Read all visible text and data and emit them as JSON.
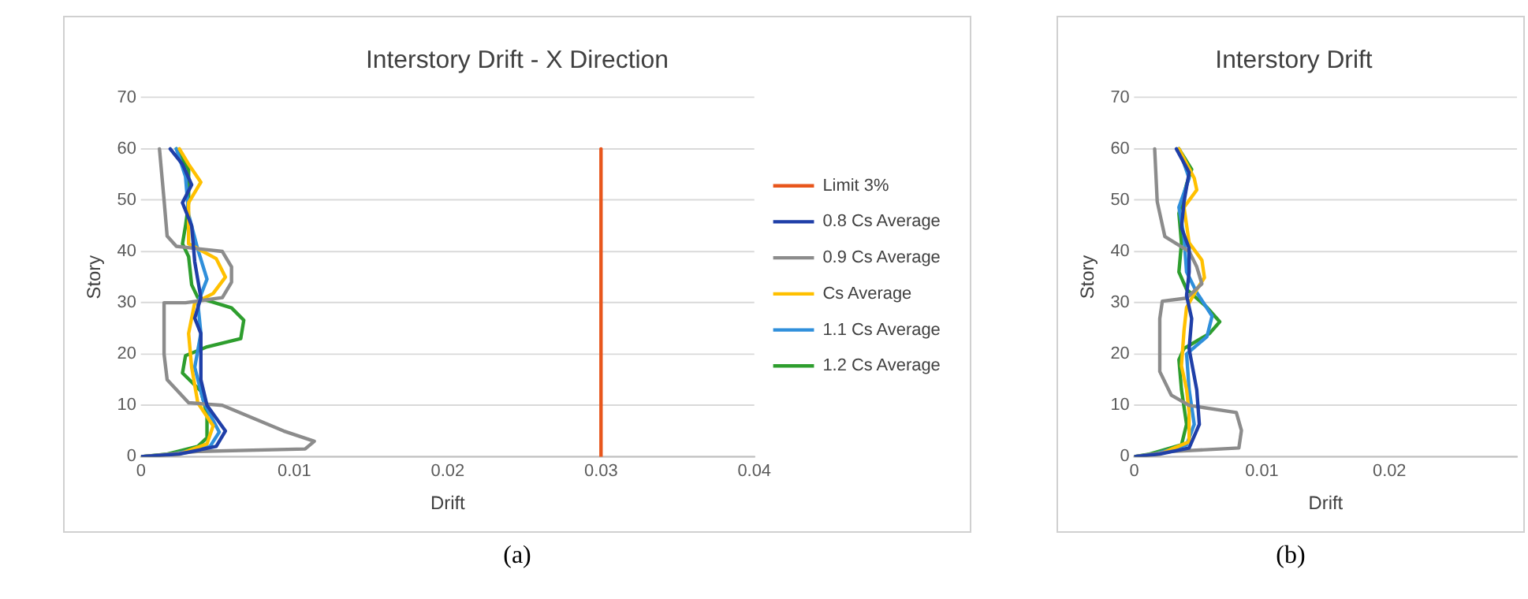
{
  "chart_data": [
    {
      "type": "line",
      "title": "Interstory Drift - X Direction",
      "xlabel": "Drift",
      "ylabel": "Story",
      "annotations": [
        "(a)"
      ],
      "xlim": [
        0,
        0.04
      ],
      "xticks": [
        0,
        0.01,
        0.02,
        0.03,
        0.04
      ],
      "ylim": [
        0,
        70
      ],
      "yticks": [
        0,
        10,
        20,
        30,
        40,
        50,
        60,
        70
      ],
      "grid": "y",
      "legend": "right",
      "marker": "none",
      "line_style": "solid",
      "series": [
        {
          "name": "Limit 3%",
          "color": "#e8561c",
          "x": [
            0.03,
            0.03
          ],
          "values": [
            0,
            60
          ]
        },
        {
          "name": "0.8 Cs Average",
          "color": "#1f3fa8",
          "x": [
            0.0019,
            0.0027,
            0.0033,
            0.0027,
            0.0033,
            0.0035,
            0.0039,
            0.0035,
            0.0039,
            0.0039,
            0.0043,
            0.0055,
            0.0049,
            0.0025,
            0
          ],
          "values": [
            60,
            57,
            53,
            49.5,
            45,
            38,
            31,
            27,
            24,
            15,
            10,
            5,
            2,
            0.5,
            0
          ]
        },
        {
          "name": "0.9 Cs Average",
          "color": "#8c8c8c",
          "x": [
            0.0012,
            0.0015,
            0.0017,
            0.0023,
            0.0053,
            0.0059,
            0.0059,
            0.0053,
            0.0029,
            0.0015,
            0.0015,
            0.0017,
            0.0031,
            0.0053,
            0.0093,
            0.0113,
            0.0107,
            0.0037,
            0
          ],
          "values": [
            60,
            50,
            43,
            41,
            40,
            37,
            34,
            31,
            30,
            30,
            20,
            15,
            10.5,
            10,
            5,
            3,
            1.5,
            1,
            0
          ]
        },
        {
          "name": "Cs Average",
          "color": "#ffc000",
          "x": [
            0.0025,
            0.0031,
            0.0039,
            0.0031,
            0.0031,
            0.0049,
            0.0055,
            0.0047,
            0.0035,
            0.0031,
            0.0033,
            0.0037,
            0.0047,
            0.0043,
            0.0025,
            0
          ],
          "values": [
            60,
            57,
            53.5,
            49.5,
            41.5,
            38.6,
            35,
            31.8,
            30,
            24,
            17.4,
            10.5,
            6,
            2.5,
            0.5,
            0
          ]
        },
        {
          "name": "1.1 Cs Average",
          "color": "#2f8fdb",
          "x": [
            0.0023,
            0.0029,
            0.0031,
            0.0037,
            0.0043,
            0.0037,
            0.0039,
            0.0035,
            0.0041,
            0.0051,
            0.0045,
            0.0021,
            0
          ],
          "values": [
            60,
            54.6,
            47.2,
            40.4,
            34.6,
            30,
            24,
            17.4,
            10.5,
            4.8,
            2,
            0.5,
            0
          ]
        },
        {
          "name": "1.2 Cs Average",
          "color": "#2e9e2e",
          "x": [
            0.0023,
            0.0031,
            0.0031,
            0.0029,
            0.0027,
            0.0031,
            0.0033,
            0.0037,
            0.0059,
            0.0067,
            0.0065,
            0.0043,
            0.0029,
            0.0027,
            0.0039,
            0.0043,
            0.0043,
            0.0037,
            0.0017,
            0
          ],
          "values": [
            60,
            56,
            49.5,
            45,
            41.5,
            39,
            33.5,
            31,
            29,
            26.6,
            23,
            21.4,
            19.7,
            16.3,
            12.8,
            8.3,
            3.7,
            2,
            0.5,
            0
          ]
        }
      ]
    },
    {
      "type": "line",
      "title": "Interstory Drift",
      "xlabel": "Drift",
      "ylabel": "Story",
      "annotations": [
        "(b)"
      ],
      "xlim": [
        0,
        0.03
      ],
      "xticks": [
        0,
        0.01,
        0.02
      ],
      "ylim": [
        0,
        70
      ],
      "yticks": [
        0,
        10,
        20,
        30,
        40,
        50,
        60,
        70
      ],
      "grid": "y",
      "marker": "none",
      "line_style": "solid",
      "series": [
        {
          "color": "#1f3fa8",
          "x": [
            0.0033,
            0.0043,
            0.0039,
            0.0037,
            0.0043,
            0.0043,
            0.0041,
            0.0045,
            0.0043,
            0.0049,
            0.0051,
            0.0043,
            0.002,
            0
          ],
          "values": [
            60,
            55.4,
            49.7,
            44.6,
            40.6,
            36,
            31.4,
            26.9,
            21,
            13,
            6.3,
            1.7,
            0.5,
            0
          ]
        },
        {
          "color": "#8c8c8c",
          "x": [
            0.0016,
            0.0018,
            0.0024,
            0.0043,
            0.0049,
            0.0053,
            0.0041,
            0.0022,
            0.002,
            0.002,
            0.0029,
            0.0043,
            0.008,
            0.0084,
            0.0082,
            0.0029,
            0
          ],
          "values": [
            60,
            49.7,
            42.9,
            40,
            37,
            33.7,
            30.9,
            30.3,
            26.9,
            16.6,
            12,
            10,
            8.6,
            5.1,
            1.7,
            1,
            0
          ]
        },
        {
          "color": "#ffc000",
          "x": [
            0.0035,
            0.0047,
            0.0049,
            0.0039,
            0.0043,
            0.0053,
            0.0055,
            0.0049,
            0.0041,
            0.0039,
            0.0037,
            0.0041,
            0.0043,
            0.0043,
            0.002,
            0
          ],
          "values": [
            60,
            54.3,
            52,
            48.6,
            41.7,
            38.3,
            34.9,
            32.6,
            29.1,
            24.6,
            17.7,
            13.1,
            8.6,
            2.9,
            0.5,
            0
          ]
        },
        {
          "color": "#2f8fdb",
          "x": [
            0.0035,
            0.0043,
            0.0035,
            0.0039,
            0.0041,
            0.0049,
            0.0061,
            0.0057,
            0.0041,
            0.0043,
            0.0047,
            0.0041,
            0.0016,
            0
          ],
          "values": [
            60,
            54.3,
            48.6,
            42.9,
            36,
            32,
            27.4,
            23.4,
            20,
            13.1,
            6.3,
            2.3,
            0.5,
            0
          ]
        },
        {
          "color": "#2e9e2e",
          "x": [
            0.0035,
            0.0045,
            0.0041,
            0.0035,
            0.0037,
            0.0035,
            0.0041,
            0.0057,
            0.0067,
            0.0059,
            0.0039,
            0.0035,
            0.0037,
            0.0041,
            0.0037,
            0.0012,
            0
          ],
          "values": [
            60,
            56,
            53.1,
            47.4,
            41.7,
            36,
            32.6,
            29.1,
            26.3,
            24,
            21.1,
            18.9,
            13.1,
            6.3,
            2.3,
            0.5,
            0
          ]
        }
      ]
    }
  ]
}
